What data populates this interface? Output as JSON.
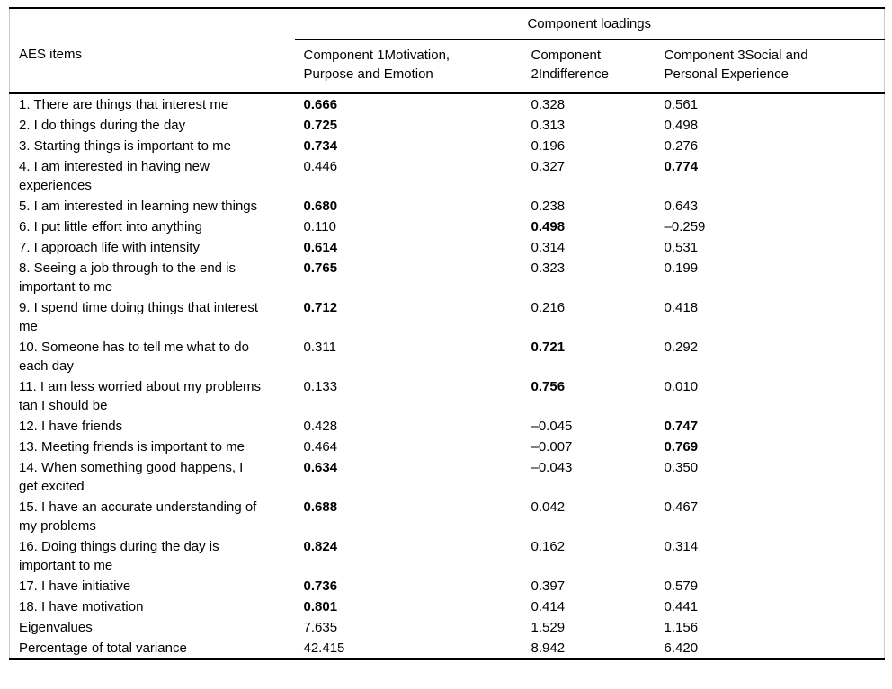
{
  "table": {
    "group_header": "Component loadings",
    "items_header": "AES items",
    "columns": [
      "Component 1Motivation, Purpose and Emotion",
      "Component 2Indifference",
      "Component 3Social and Personal Experience"
    ],
    "rows": [
      {
        "item": "1. There are things that interest me",
        "values": [
          "0.666",
          "0.328",
          "0.561"
        ],
        "bold": [
          true,
          false,
          false
        ]
      },
      {
        "item": "2. I do things during the day",
        "values": [
          "0.725",
          "0.313",
          "0.498"
        ],
        "bold": [
          true,
          false,
          false
        ]
      },
      {
        "item": "3. Starting things is important to me",
        "values": [
          "0.734",
          "0.196",
          "0.276"
        ],
        "bold": [
          true,
          false,
          false
        ]
      },
      {
        "item": "4. I am interested in having new experiences",
        "values": [
          "0.446",
          "0.327",
          "0.774"
        ],
        "bold": [
          false,
          false,
          true
        ]
      },
      {
        "item": "5. I am interested in learning new things",
        "values": [
          "0.680",
          "0.238",
          "0.643"
        ],
        "bold": [
          true,
          false,
          false
        ]
      },
      {
        "item": "6. I put little effort into anything",
        "values": [
          "0.110",
          "0.498",
          "–0.259"
        ],
        "bold": [
          false,
          true,
          false
        ]
      },
      {
        "item": "7. I approach life with intensity",
        "values": [
          "0.614",
          "0.314",
          "0.531"
        ],
        "bold": [
          true,
          false,
          false
        ]
      },
      {
        "item": "8. Seeing a job through to the end is important to me",
        "values": [
          "0.765",
          "0.323",
          "0.199"
        ],
        "bold": [
          true,
          false,
          false
        ]
      },
      {
        "item": "9. I spend time doing things that interest me",
        "values": [
          "0.712",
          "0.216",
          "0.418"
        ],
        "bold": [
          true,
          false,
          false
        ]
      },
      {
        "item": "10. Someone has to tell me what to do each day",
        "values": [
          "0.311",
          "0.721",
          "0.292"
        ],
        "bold": [
          false,
          true,
          false
        ]
      },
      {
        "item": "11. I am less worried about my problems tan I should be",
        "values": [
          "0.133",
          "0.756",
          "0.010"
        ],
        "bold": [
          false,
          true,
          false
        ]
      },
      {
        "item": "12. I have friends",
        "values": [
          "0.428",
          "–0.045",
          "0.747"
        ],
        "bold": [
          false,
          false,
          true
        ]
      },
      {
        "item": "13. Meeting friends is important to me",
        "values": [
          "0.464",
          "–0.007",
          "0.769"
        ],
        "bold": [
          false,
          false,
          true
        ]
      },
      {
        "item": "14. When something good happens, I get excited",
        "values": [
          "0.634",
          "–0.043",
          "0.350"
        ],
        "bold": [
          true,
          false,
          false
        ]
      },
      {
        "item": "15. I have an accurate understanding of my problems",
        "values": [
          "0.688",
          "0.042",
          "0.467"
        ],
        "bold": [
          true,
          false,
          false
        ]
      },
      {
        "item": "16. Doing things during the day is important to me",
        "values": [
          "0.824",
          "0.162",
          "0.314"
        ],
        "bold": [
          true,
          false,
          false
        ]
      },
      {
        "item": "17. I have initiative",
        "values": [
          "0.736",
          "0.397",
          "0.579"
        ],
        "bold": [
          true,
          false,
          false
        ]
      },
      {
        "item": "18. I have motivation",
        "values": [
          "0.801",
          "0.414",
          "0.441"
        ],
        "bold": [
          true,
          false,
          false
        ]
      },
      {
        "item": "Eigenvalues",
        "values": [
          "7.635",
          "1.529",
          "1.156"
        ],
        "bold": [
          false,
          false,
          false
        ]
      },
      {
        "item": "Percentage of total variance",
        "values": [
          "42.415",
          "8.942",
          "6.420"
        ],
        "bold": [
          false,
          false,
          false
        ]
      }
    ]
  }
}
